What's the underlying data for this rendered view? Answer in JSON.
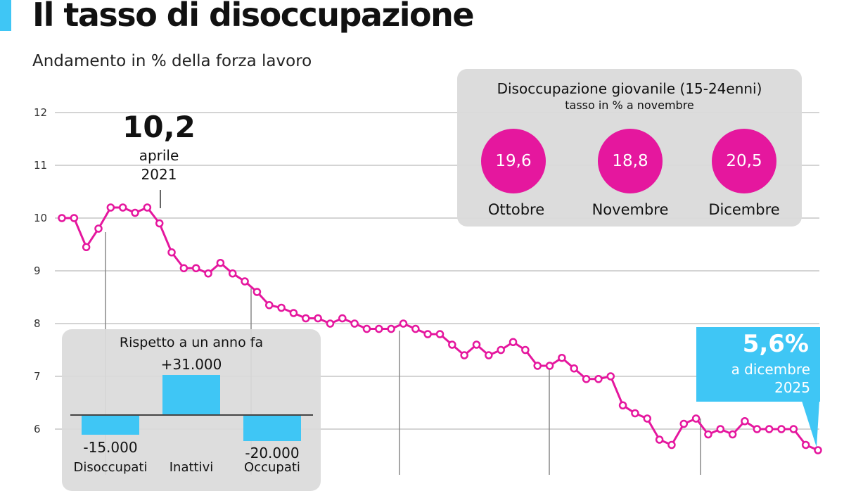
{
  "header": {
    "title": "Il tasso di disoccupazione",
    "subtitle": "Andamento in % della forza lavoro"
  },
  "colors": {
    "line": "#e5179e",
    "accent": "#3fc6f5",
    "panel": "#dadada"
  },
  "chart_data": {
    "type": "line",
    "title": "Il tasso di disoccupazione",
    "ylabel": "% della forza lavoro",
    "ylim": [
      5,
      12
    ],
    "yticks": [
      "12",
      "11",
      "10",
      "9",
      "8",
      "7",
      "6"
    ],
    "grid": true,
    "series": [
      {
        "name": "Tasso di disoccupazione",
        "values": [
          10.0,
          10.0,
          9.45,
          9.8,
          10.2,
          10.2,
          10.1,
          10.2,
          9.9,
          9.35,
          9.05,
          9.05,
          8.95,
          9.15,
          8.95,
          8.8,
          8.6,
          8.35,
          8.3,
          8.2,
          8.1,
          8.1,
          8.0,
          8.1,
          8.0,
          7.9,
          7.9,
          7.9,
          8.0,
          7.9,
          7.8,
          7.8,
          7.6,
          7.4,
          7.6,
          7.4,
          7.5,
          7.65,
          7.5,
          7.2,
          7.2,
          7.35,
          7.15,
          6.95,
          6.95,
          7.0,
          6.45,
          6.3,
          6.2,
          5.8,
          5.7,
          6.1,
          6.2,
          5.9,
          6.0,
          5.9,
          6.15,
          6.0,
          6.0,
          6.0,
          6.0,
          5.7,
          5.6
        ]
      }
    ],
    "annotations": {
      "peak": {
        "value": "10,2",
        "month": "aprile",
        "year": "2021"
      },
      "latest": {
        "value": "5,6%",
        "line1": "a dicembre",
        "line2": "2025"
      }
    }
  },
  "youth": {
    "title": "Disoccupazione giovanile (15-24enni)",
    "subtitle": "tasso in % a novembre",
    "items": [
      {
        "label": "Ottobre",
        "value": "19,6"
      },
      {
        "label": "Novembre",
        "value": "18,8"
      },
      {
        "label": "Dicembre",
        "value": "20,5"
      }
    ]
  },
  "yoy": {
    "title": "Rispetto a un anno fa",
    "items": [
      {
        "label": "Disoccupati",
        "value": "-15.000",
        "num": -15000
      },
      {
        "label": "Inattivi",
        "value": "+31.000",
        "num": 31000
      },
      {
        "label": "Occupati",
        "value": "-20.000",
        "num": -20000
      }
    ]
  }
}
